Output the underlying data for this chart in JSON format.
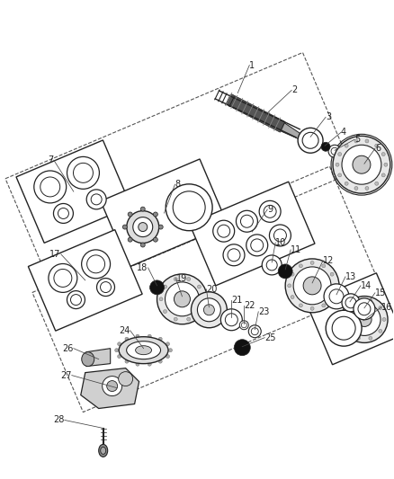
{
  "bg_color": "#ffffff",
  "fig_width": 4.38,
  "fig_height": 5.33,
  "dpi": 100,
  "dark": "#222222",
  "mid": "#888888",
  "light": "#cccccc",
  "dash_color": "#555555"
}
